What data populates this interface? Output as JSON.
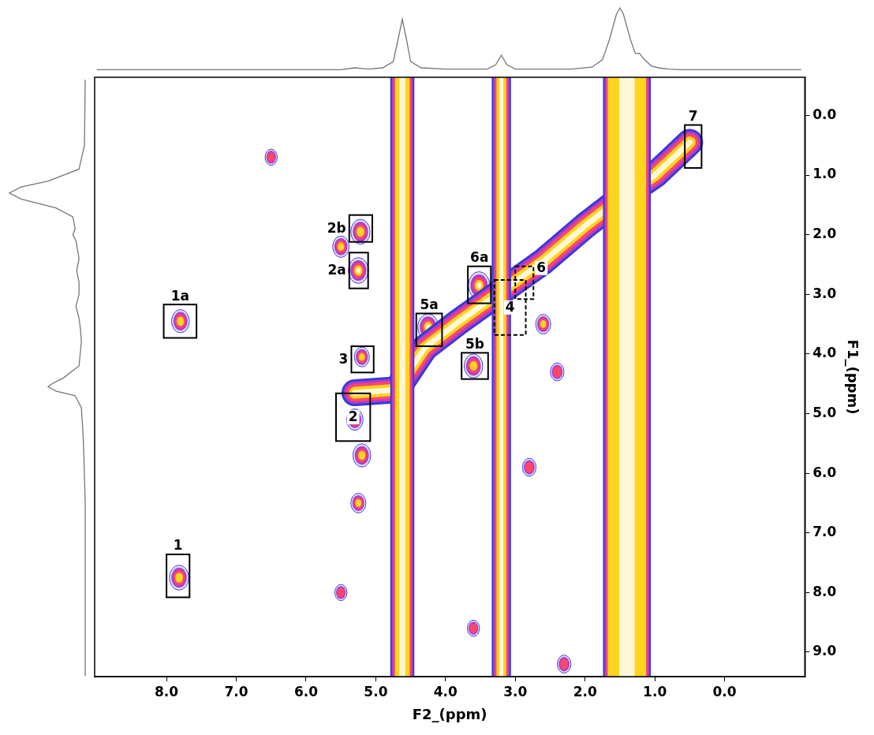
{
  "chart_data": {
    "type": "contour",
    "xlabel": "F2_(ppm)",
    "ylabel": "F1_(ppm)",
    "xlim": [
      9.03,
      -1.15
    ],
    "ylim": [
      9.41,
      -0.64
    ],
    "xticks": [
      {
        "value": 8,
        "label": "8.0"
      },
      {
        "value": 7,
        "label": "7.0"
      },
      {
        "value": 6,
        "label": "6.0"
      },
      {
        "value": 5,
        "label": "5.0"
      },
      {
        "value": 4,
        "label": "4.0"
      },
      {
        "value": 3,
        "label": "3.0"
      },
      {
        "value": 2,
        "label": "2.0"
      },
      {
        "value": 1,
        "label": "1.0"
      },
      {
        "value": 0,
        "label": "0.0"
      }
    ],
    "yticks": [
      {
        "value": 0,
        "label": "0.0"
      },
      {
        "value": 1,
        "label": "1.0"
      },
      {
        "value": 2,
        "label": "2.0"
      },
      {
        "value": 3,
        "label": "3.0"
      },
      {
        "value": 4,
        "label": "4.0"
      },
      {
        "value": 5,
        "label": "5.0"
      },
      {
        "value": 6,
        "label": "6.0"
      },
      {
        "value": 7,
        "label": "7.0"
      },
      {
        "value": 8,
        "label": "8.0"
      },
      {
        "value": 9,
        "label": "9.0"
      }
    ],
    "grid": false,
    "streaks": [
      {
        "x": 4.62,
        "width": 0.21
      },
      {
        "x": 3.2,
        "width": 0.14
      },
      {
        "x": 1.4,
        "width": 0.55
      }
    ],
    "diagonal": {
      "x": [
        5.3,
        4.7,
        4.3,
        3.8,
        3.2,
        2.6,
        2.0,
        1.5,
        1.0,
        0.5
      ],
      "y": [
        4.65,
        4.6,
        3.9,
        3.45,
        2.95,
        2.45,
        1.85,
        1.4,
        1.0,
        0.45
      ]
    },
    "peaks": {
      "x": [
        7.8,
        7.82,
        5.22,
        5.25,
        5.2,
        5.3,
        4.25,
        3.6,
        3.52,
        3.1,
        0.52,
        5.5,
        5.2,
        5.25,
        2.6,
        2.4,
        2.8,
        6.5,
        5.5,
        2.3,
        3.6
      ],
      "y": [
        3.45,
        7.75,
        1.95,
        2.6,
        4.05,
        5.1,
        3.55,
        4.2,
        2.85,
        3.2,
        0.5,
        2.2,
        5.7,
        6.5,
        3.5,
        4.3,
        5.9,
        0.7,
        8.0,
        9.2,
        8.6
      ],
      "intensity": [
        0.7,
        0.8,
        0.8,
        0.85,
        0.5,
        0.6,
        0.9,
        0.75,
        0.95,
        0.4,
        0.9,
        0.6,
        0.7,
        0.5,
        0.5,
        0.4,
        0.4,
        0.3,
        0.3,
        0.4,
        0.3
      ]
    },
    "boxes": [
      {
        "label": "1a",
        "x": [
          8.04,
          7.57
        ],
        "y": [
          3.17,
          3.73
        ]
      },
      {
        "label": "1",
        "x": [
          8.0,
          7.67
        ],
        "y": [
          7.36,
          8.08
        ]
      },
      {
        "label": "2b",
        "x": [
          5.38,
          5.05
        ],
        "y": [
          1.67,
          2.12
        ]
      },
      {
        "label": "2a",
        "x": [
          5.38,
          5.11
        ],
        "y": [
          2.3,
          2.9
        ]
      },
      {
        "label": "3",
        "x": [
          5.35,
          5.03
        ],
        "y": [
          3.87,
          4.31
        ]
      },
      {
        "label": "2",
        "x": [
          5.57,
          5.08
        ],
        "y": [
          4.66,
          5.46
        ]
      },
      {
        "label": "5a",
        "x": [
          4.42,
          4.05
        ],
        "y": [
          3.32,
          3.87
        ]
      },
      {
        "label": "5b",
        "x": [
          3.77,
          3.39
        ],
        "y": [
          3.98,
          4.42
        ]
      },
      {
        "label": "6a",
        "x": [
          3.68,
          3.35
        ],
        "y": [
          2.53,
          3.15
        ]
      },
      {
        "label": "4",
        "x": [
          3.3,
          2.85
        ],
        "y": [
          2.76,
          3.68
        ],
        "line_style": "dashed"
      },
      {
        "label": "6",
        "x": [
          3.0,
          2.74
        ],
        "y": [
          2.53,
          3.08
        ],
        "line_style": "dashed"
      },
      {
        "label": "7",
        "x": [
          0.57,
          0.33
        ],
        "y": [
          0.16,
          0.88
        ]
      }
    ],
    "projection_f2": {
      "x": [
        9.0,
        5.5,
        5.3,
        5.2,
        5.1,
        4.9,
        4.75,
        4.68,
        4.62,
        4.56,
        4.5,
        4.35,
        4.0,
        3.4,
        3.28,
        3.2,
        3.12,
        3.0,
        2.2,
        1.9,
        1.75,
        1.65,
        1.55,
        1.5,
        1.45,
        1.35,
        1.28,
        1.22,
        1.15,
        1.05,
        0.95,
        0.8,
        0.6,
        -1.1
      ],
      "values": [
        0.02,
        0.02,
        0.05,
        0.04,
        0.03,
        0.05,
        0.15,
        0.5,
        0.82,
        0.5,
        0.15,
        0.05,
        0.03,
        0.03,
        0.1,
        0.25,
        0.1,
        0.03,
        0.03,
        0.06,
        0.18,
        0.5,
        0.9,
        1.0,
        0.9,
        0.5,
        0.28,
        0.28,
        0.18,
        0.08,
        0.05,
        0.03,
        0.02,
        0.02
      ]
    },
    "projection_f1": {
      "y": [
        -0.6,
        0.5,
        0.9,
        1.1,
        1.2,
        1.3,
        1.4,
        1.55,
        1.7,
        1.9,
        2.0,
        2.1,
        2.4,
        2.6,
        2.8,
        3.0,
        3.2,
        3.4,
        3.6,
        3.8,
        4.2,
        4.4,
        4.5,
        4.55,
        4.62,
        4.7,
        4.9,
        5.3,
        5.6,
        6.5,
        9.4
      ],
      "values": [
        0.02,
        0.03,
        0.1,
        0.5,
        0.85,
        1.0,
        0.85,
        0.4,
        0.18,
        0.15,
        0.18,
        0.14,
        0.1,
        0.13,
        0.1,
        0.1,
        0.14,
        0.1,
        0.08,
        0.07,
        0.1,
        0.3,
        0.45,
        0.5,
        0.4,
        0.15,
        0.07,
        0.05,
        0.04,
        0.02,
        0.02
      ]
    }
  }
}
